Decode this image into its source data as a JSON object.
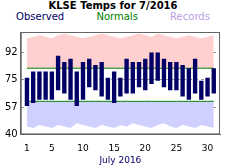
{
  "chart_data": {
    "type": "bar",
    "title": "KLSE Temps for 7/2016",
    "x_label": "July 2016",
    "x": [
      1,
      2,
      3,
      4,
      5,
      6,
      7,
      8,
      9,
      10,
      11,
      12,
      13,
      14,
      15,
      16,
      17,
      18,
      19,
      20,
      21,
      22,
      23,
      24,
      25,
      26,
      27,
      28,
      29,
      30,
      31
    ],
    "xlim": [
      0,
      32
    ],
    "xticks": [
      1,
      5,
      10,
      15,
      20,
      25,
      30
    ],
    "ylim": [
      40,
      105
    ],
    "yticks": [
      40,
      57,
      75,
      92
    ],
    "grid": true,
    "legend": "top",
    "series": [
      {
        "name": "Observed",
        "color": "#000066",
        "values": [
          [
            58,
            76
          ],
          [
            60,
            80
          ],
          [
            62,
            80
          ],
          [
            62,
            80
          ],
          [
            62,
            80
          ],
          [
            68,
            90
          ],
          [
            66,
            86
          ],
          [
            62,
            88
          ],
          [
            58,
            80
          ],
          [
            62,
            86
          ],
          [
            70,
            88
          ],
          [
            68,
            84
          ],
          [
            64,
            86
          ],
          [
            62,
            76
          ],
          [
            60,
            80
          ],
          [
            64,
            76
          ],
          [
            66,
            88
          ],
          [
            66,
            86
          ],
          [
            70,
            86
          ],
          [
            68,
            88
          ],
          [
            72,
            92
          ],
          [
            74,
            92
          ],
          [
            70,
            88
          ],
          [
            68,
            86
          ],
          [
            68,
            86
          ],
          [
            64,
            84
          ],
          [
            62,
            82
          ],
          [
            66,
            88
          ],
          [
            62,
            74
          ],
          [
            64,
            76
          ],
          [
            66,
            82
          ]
        ]
      },
      {
        "name": "Normals",
        "color": "#008000",
        "values": [
          [
            61,
            82
          ],
          [
            61,
            82
          ],
          [
            61,
            82
          ],
          [
            61,
            82
          ],
          [
            61,
            82
          ],
          [
            61,
            82
          ],
          [
            61,
            82
          ],
          [
            61,
            82
          ],
          [
            61,
            82
          ],
          [
            61,
            82
          ],
          [
            61,
            82
          ],
          [
            61,
            82
          ],
          [
            61,
            82
          ],
          [
            61,
            82
          ],
          [
            61,
            82
          ],
          [
            61,
            82
          ],
          [
            61,
            82
          ],
          [
            61,
            82
          ],
          [
            61,
            82
          ],
          [
            61,
            82
          ],
          [
            61,
            82
          ],
          [
            61,
            82
          ],
          [
            61,
            82
          ],
          [
            61,
            82
          ],
          [
            61,
            82
          ],
          [
            61,
            82
          ],
          [
            61,
            82
          ],
          [
            61,
            82
          ],
          [
            61,
            82
          ],
          [
            61,
            82
          ],
          [
            61,
            82
          ]
        ]
      },
      {
        "name": "Records",
        "color": "#b8a0e8",
        "values": [
          [
            45,
            101
          ],
          [
            44,
            102
          ],
          [
            46,
            103
          ],
          [
            45,
            102
          ],
          [
            44,
            101
          ],
          [
            46,
            103
          ],
          [
            45,
            104
          ],
          [
            44,
            103
          ],
          [
            47,
            102
          ],
          [
            46,
            101
          ],
          [
            45,
            102
          ],
          [
            44,
            103
          ],
          [
            46,
            104
          ],
          [
            45,
            103
          ],
          [
            44,
            102
          ],
          [
            46,
            101
          ],
          [
            45,
            102
          ],
          [
            47,
            103
          ],
          [
            46,
            104
          ],
          [
            45,
            103
          ],
          [
            44,
            102
          ],
          [
            46,
            104
          ],
          [
            47,
            103
          ],
          [
            45,
            102
          ],
          [
            44,
            101
          ],
          [
            46,
            102
          ],
          [
            45,
            103
          ],
          [
            44,
            102
          ],
          [
            46,
            101
          ],
          [
            45,
            102
          ],
          [
            44,
            103
          ]
        ]
      }
    ]
  }
}
